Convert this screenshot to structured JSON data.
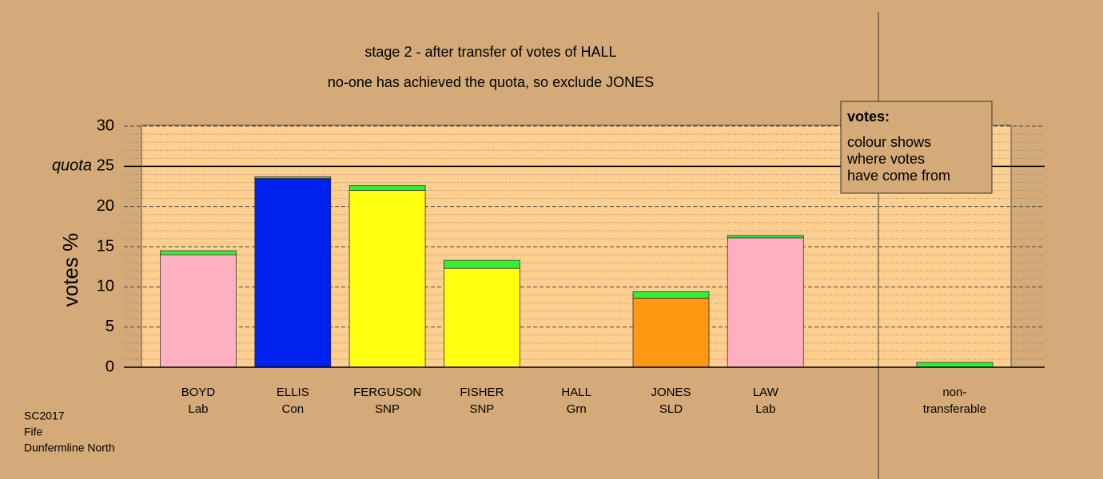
{
  "chart_data": {
    "type": "stacked-bar",
    "title": "stage 2 - after transfer of votes of HALL",
    "subtitle": "no-one has achieved the quota, so exclude JONES",
    "y_label": "votes %",
    "categories": [
      [
        "BOYD",
        "Lab"
      ],
      [
        "ELLIS",
        "Con"
      ],
      [
        "FERGUSON",
        "SNP"
      ],
      [
        "FISHER",
        "SNP"
      ],
      [
        "HALL",
        "Grn"
      ],
      [
        "JONES",
        "SLD"
      ],
      [
        "LAW",
        "Lab"
      ],
      null,
      [
        "non-",
        "transferable"
      ]
    ],
    "series": [
      {
        "colors": [
          "#ffb0c0",
          "#0022ee",
          "#ffff11",
          "#ffff11",
          "#33ee33",
          "#ff9911",
          "#ffb0c0",
          null,
          "#33ee33"
        ],
        "values": [
          14.0,
          23.5,
          22.0,
          12.3,
          0,
          8.6,
          16.1,
          null,
          0
        ]
      },
      {
        "color": "#33ee33",
        "values": [
          0.5,
          0.2,
          0.6,
          1.0,
          0,
          0.8,
          0.3,
          null,
          0.6
        ]
      }
    ],
    "ylim": [
      0,
      30
    ],
    "yticks": [
      0,
      5,
      10,
      15,
      20,
      25,
      30
    ],
    "minor_step": 1,
    "grid": true,
    "reference_line": {
      "value": 25,
      "label": "quota"
    },
    "legend": {
      "title": "votes:",
      "lines": [
        "colour shows",
        "where votes",
        "have come from"
      ]
    },
    "footer": [
      "SC2017",
      "Fife",
      "Dunfermline North"
    ]
  }
}
